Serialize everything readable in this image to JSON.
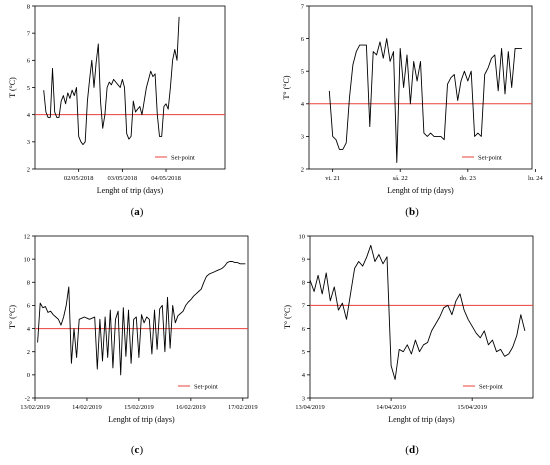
{
  "chart_data": [
    {
      "panel_label": "a",
      "type": "line",
      "xlabel": "Lenght of trip (days)",
      "ylabel": "T (°C)",
      "ylim": [
        2,
        8
      ],
      "yticks": [
        "2",
        "3",
        "4",
        "5",
        "6",
        "7",
        "8"
      ],
      "xlim": [
        0,
        4.35
      ],
      "xticks": [
        {
          "v": 1,
          "label": "02/05/2018"
        },
        {
          "v": 2,
          "label": "03/05/2018"
        },
        {
          "v": 3,
          "label": "04/05/2018"
        }
      ],
      "setpoint": 4,
      "legend_label": "Set-point",
      "legend_position": "bottom-right",
      "colors": {
        "series": "#000000",
        "setpoint": "#e8413a"
      },
      "x": [
        0.2,
        0.25,
        0.3,
        0.35,
        0.4,
        0.45,
        0.5,
        0.55,
        0.6,
        0.65,
        0.7,
        0.75,
        0.8,
        0.85,
        0.9,
        0.95,
        1.0,
        1.05,
        1.1,
        1.15,
        1.2,
        1.25,
        1.3,
        1.35,
        1.4,
        1.45,
        1.5,
        1.55,
        1.6,
        1.65,
        1.7,
        1.75,
        1.8,
        1.85,
        1.9,
        1.95,
        2.0,
        2.05,
        2.1,
        2.15,
        2.2,
        2.25,
        2.3,
        2.35,
        2.4,
        2.45,
        2.5,
        2.55,
        2.6,
        2.65,
        2.7,
        2.75,
        2.8,
        2.85,
        2.9,
        2.95,
        3.0,
        3.05,
        3.1,
        3.15,
        3.2,
        3.25,
        3.3
      ],
      "values": [
        4.9,
        4.1,
        3.9,
        3.9,
        5.7,
        4.1,
        3.9,
        3.9,
        4.5,
        4.7,
        4.4,
        4.8,
        4.6,
        4.9,
        4.7,
        5.0,
        3.2,
        3.0,
        2.9,
        3.0,
        4.5,
        5.3,
        6.0,
        5.0,
        5.9,
        6.6,
        4.5,
        3.5,
        4.0,
        5.0,
        5.2,
        5.1,
        5.3,
        5.2,
        5.1,
        5.0,
        5.3,
        5.0,
        3.3,
        3.1,
        3.2,
        4.5,
        4.1,
        4.2,
        4.3,
        4.0,
        4.5,
        5.0,
        5.3,
        5.6,
        5.4,
        5.5,
        4.0,
        3.2,
        3.2,
        4.3,
        4.4,
        4.2,
        5.0,
        6.0,
        6.4,
        6.0,
        7.6
      ]
    },
    {
      "panel_label": "b",
      "type": "line",
      "xlabel": "Lenght of trip (days)",
      "ylabel": "T° (°C)",
      "ylim": [
        2,
        7
      ],
      "yticks": [
        "2",
        "3",
        "4",
        "5",
        "6",
        "7"
      ],
      "xlim": [
        0,
        3.3
      ],
      "xticks": [
        {
          "v": 0.35,
          "label": "vi. 21"
        },
        {
          "v": 1.35,
          "label": "sá. 22"
        },
        {
          "v": 2.35,
          "label": "do. 23"
        },
        {
          "v": 3.35,
          "label": "lu. 24"
        }
      ],
      "setpoint": 4,
      "legend_label": "Set-point",
      "legend_position": "bottom-right",
      "colors": {
        "series": "#000000",
        "setpoint": "#e8413a"
      },
      "x": [
        0.3,
        0.35,
        0.4,
        0.45,
        0.5,
        0.55,
        0.6,
        0.65,
        0.7,
        0.75,
        0.8,
        0.85,
        0.9,
        0.95,
        1.0,
        1.05,
        1.1,
        1.15,
        1.2,
        1.25,
        1.3,
        1.35,
        1.4,
        1.45,
        1.5,
        1.55,
        1.6,
        1.65,
        1.7,
        1.75,
        1.8,
        1.85,
        1.9,
        1.95,
        2.0,
        2.05,
        2.1,
        2.15,
        2.2,
        2.25,
        2.3,
        2.35,
        2.4,
        2.45,
        2.5,
        2.55,
        2.6,
        2.65,
        2.7,
        2.75,
        2.8,
        2.85,
        2.9,
        2.95,
        3.0,
        3.05,
        3.1,
        3.15
      ],
      "values": [
        4.4,
        3.0,
        2.9,
        2.6,
        2.6,
        2.8,
        4.2,
        5.2,
        5.6,
        5.8,
        5.8,
        5.8,
        3.3,
        5.6,
        5.5,
        5.9,
        5.4,
        6.0,
        5.3,
        5.6,
        2.2,
        5.7,
        4.5,
        5.5,
        4.0,
        5.3,
        4.7,
        5.3,
        3.1,
        3.0,
        3.1,
        3.0,
        3.0,
        3.0,
        2.9,
        4.6,
        4.8,
        4.9,
        4.1,
        4.7,
        5.0,
        4.7,
        5.0,
        3.0,
        3.1,
        3.0,
        4.9,
        5.1,
        5.4,
        5.5,
        4.4,
        5.7,
        4.3,
        5.6,
        4.5,
        5.7,
        5.7,
        5.7
      ]
    },
    {
      "panel_label": "c",
      "type": "line",
      "xlabel": "Lenght of trip (days)",
      "ylabel": "T° (°C)",
      "ylim": [
        -2,
        12
      ],
      "yticks": [
        "-2",
        "0",
        "2",
        "4",
        "6",
        "8",
        "10",
        "12"
      ],
      "xlim": [
        0,
        4.1
      ],
      "xticks": [
        {
          "v": 0,
          "label": "13/02/2019"
        },
        {
          "v": 1,
          "label": "14/02/2019"
        },
        {
          "v": 2,
          "label": "15/02/2019"
        },
        {
          "v": 3,
          "label": "16/02/2019"
        },
        {
          "v": 4,
          "label": "17/02/2019"
        }
      ],
      "setpoint": 4,
      "legend_label": "Set-point",
      "legend_position": "bottom-right",
      "colors": {
        "series": "#000000",
        "setpoint": "#e8413a"
      },
      "x": [
        0.05,
        0.1,
        0.15,
        0.2,
        0.25,
        0.3,
        0.35,
        0.4,
        0.45,
        0.5,
        0.55,
        0.6,
        0.65,
        0.7,
        0.75,
        0.8,
        0.85,
        0.9,
        0.95,
        1.0,
        1.05,
        1.1,
        1.15,
        1.2,
        1.25,
        1.3,
        1.35,
        1.4,
        1.45,
        1.5,
        1.55,
        1.6,
        1.65,
        1.7,
        1.75,
        1.8,
        1.85,
        1.9,
        1.95,
        2.0,
        2.05,
        2.1,
        2.15,
        2.2,
        2.25,
        2.3,
        2.35,
        2.4,
        2.45,
        2.5,
        2.55,
        2.6,
        2.65,
        2.7,
        2.75,
        2.8,
        2.85,
        2.9,
        2.95,
        3.0,
        3.05,
        3.1,
        3.15,
        3.2,
        3.25,
        3.3,
        3.35,
        3.4,
        3.45,
        3.5,
        3.55,
        3.6,
        3.65,
        3.7,
        3.75,
        3.8,
        3.85,
        3.9,
        3.95,
        4.0,
        4.05
      ],
      "values": [
        2.8,
        6.2,
        5.8,
        5.9,
        5.4,
        5.5,
        5.2,
        5.0,
        4.8,
        4.3,
        5.0,
        6.0,
        7.6,
        1.0,
        4.0,
        1.5,
        4.8,
        4.9,
        5.0,
        4.9,
        4.8,
        4.9,
        5.0,
        0.5,
        4.8,
        1.2,
        5.0,
        1.5,
        5.6,
        0.6,
        4.8,
        5.5,
        0.0,
        5.8,
        1.6,
        5.6,
        1.0,
        4.8,
        5.0,
        1.5,
        5.2,
        4.5,
        5.0,
        4.8,
        1.8,
        5.6,
        2.2,
        5.7,
        6.0,
        2.0,
        6.7,
        2.3,
        6.0,
        4.5,
        5.1,
        5.3,
        5.5,
        6.0,
        6.3,
        6.5,
        6.8,
        7.0,
        7.2,
        7.4,
        8.0,
        8.5,
        8.7,
        8.8,
        8.9,
        9.0,
        9.1,
        9.2,
        9.4,
        9.7,
        9.8,
        9.8,
        9.7,
        9.7,
        9.6,
        9.6,
        9.6
      ]
    },
    {
      "panel_label": "d",
      "type": "line",
      "xlabel": "Lenght of trip (days)",
      "ylabel": "T° (°C)",
      "ylim": [
        3,
        10
      ],
      "yticks": [
        "3",
        "4",
        "5",
        "6",
        "7",
        "8",
        "9",
        "10"
      ],
      "xlim": [
        0,
        2.75
      ],
      "xticks": [
        {
          "v": 0,
          "label": "13/04/2019"
        },
        {
          "v": 1,
          "label": "14/04/2019"
        },
        {
          "v": 2,
          "label": "15/04/2019"
        }
      ],
      "setpoint": 7,
      "legend_label": "Set-point",
      "legend_position": "bottom-right",
      "colors": {
        "series": "#000000",
        "setpoint": "#e8413a"
      },
      "x": [
        0.0,
        0.05,
        0.1,
        0.15,
        0.2,
        0.25,
        0.3,
        0.35,
        0.4,
        0.45,
        0.5,
        0.55,
        0.6,
        0.65,
        0.7,
        0.75,
        0.8,
        0.85,
        0.9,
        0.95,
        1.0,
        1.05,
        1.1,
        1.15,
        1.2,
        1.25,
        1.3,
        1.35,
        1.4,
        1.45,
        1.5,
        1.55,
        1.6,
        1.65,
        1.7,
        1.75,
        1.8,
        1.85,
        1.9,
        1.95,
        2.0,
        2.05,
        2.1,
        2.15,
        2.2,
        2.25,
        2.3,
        2.35,
        2.4,
        2.45,
        2.5,
        2.55,
        2.6,
        2.65
      ],
      "values": [
        8.1,
        7.6,
        8.3,
        7.5,
        8.4,
        7.2,
        7.8,
        6.8,
        7.1,
        6.4,
        7.5,
        8.6,
        8.9,
        8.7,
        9.1,
        9.6,
        8.9,
        9.2,
        8.8,
        9.1,
        4.4,
        3.8,
        5.1,
        5.0,
        5.3,
        4.9,
        5.5,
        5.0,
        5.3,
        5.4,
        5.9,
        6.2,
        6.5,
        6.9,
        7.0,
        6.6,
        7.2,
        7.5,
        6.8,
        6.4,
        6.1,
        5.8,
        5.6,
        5.9,
        5.3,
        5.5,
        5.0,
        5.1,
        4.8,
        4.9,
        5.2,
        5.7,
        6.6,
        5.9
      ]
    }
  ]
}
